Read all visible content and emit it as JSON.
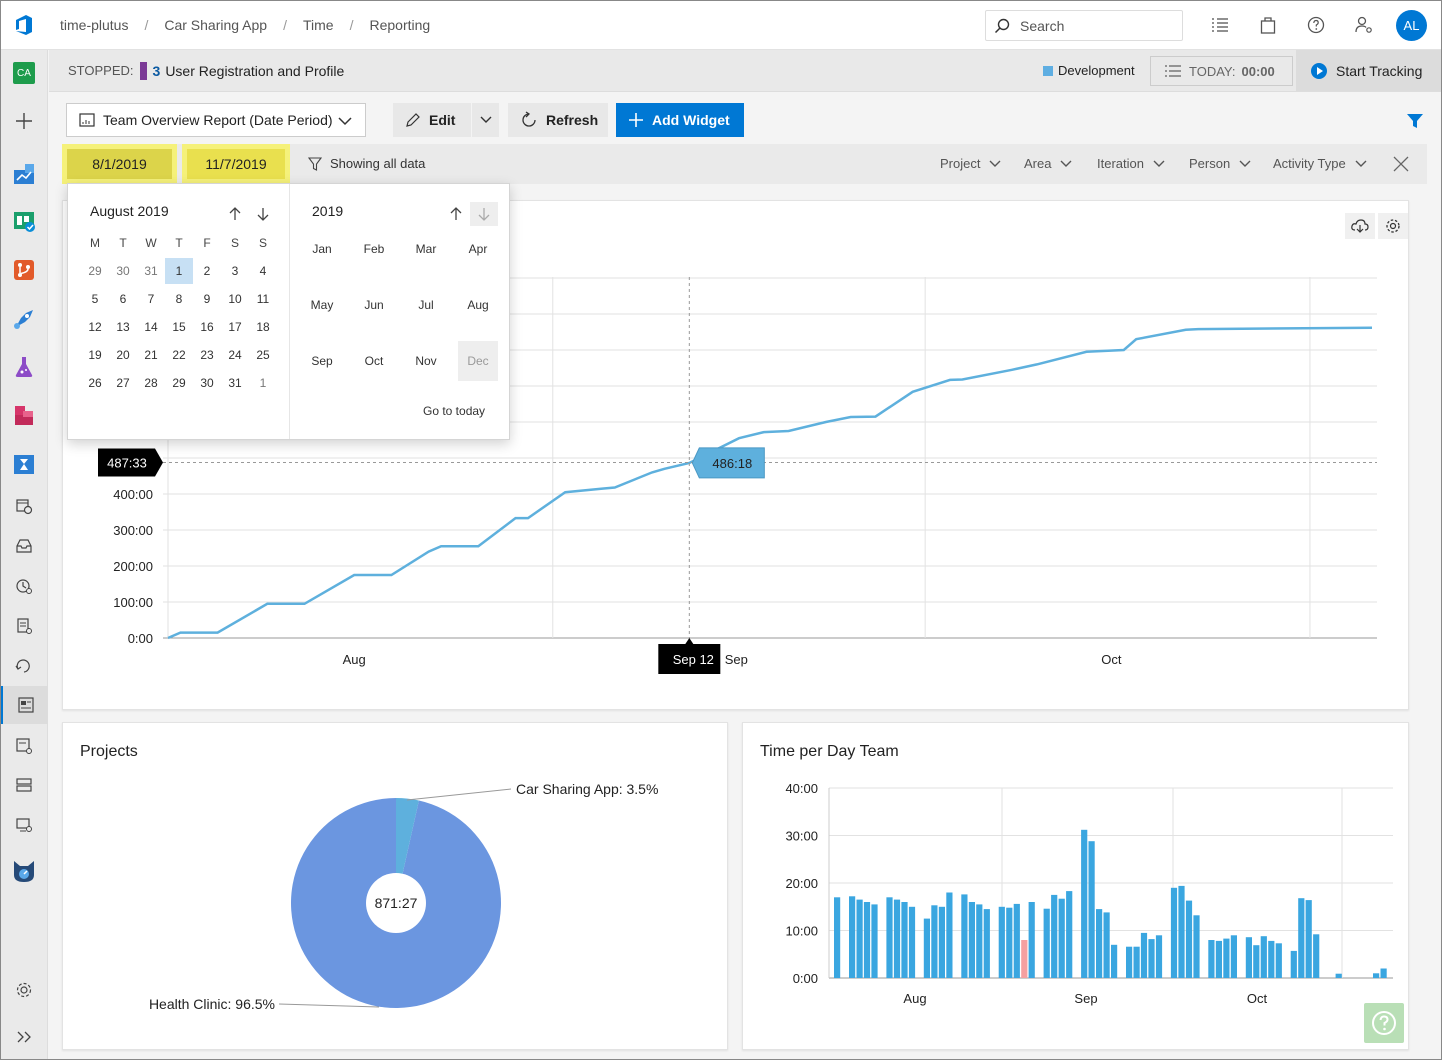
{
  "breadcrumb": [
    "time-plutus",
    "Car Sharing App",
    "Time",
    "Reporting"
  ],
  "search": {
    "placeholder": "Search"
  },
  "user": {
    "initials": "AL"
  },
  "nav": {
    "project_initials": "CA"
  },
  "status": {
    "label": "STOPPED:",
    "item_number": "3",
    "item_title": "User Registration and Profile",
    "activity": "Development",
    "today_label": "TODAY:",
    "today_value": "00:00",
    "start_label": "Start Tracking"
  },
  "toolbar": {
    "report": "Team Overview Report (Date Period)",
    "edit": "Edit",
    "refresh": "Refresh",
    "add_widget": "Add Widget"
  },
  "filters": {
    "start_date": "8/1/2019",
    "end_date": "11/7/2019",
    "showing": "Showing all data",
    "items": [
      "Project",
      "Area",
      "Iteration",
      "Person",
      "Activity Type"
    ]
  },
  "colors": {
    "accent": "#0078d4",
    "line": "#5eb0dd",
    "pie_main": "#6b96e0",
    "pie_small": "#5eb0dd",
    "bar": "#3aa6e0",
    "bar_highlight": "#f5a0a0"
  },
  "picker": {
    "month_title": "August 2019",
    "weekdays": [
      "M",
      "T",
      "W",
      "T",
      "F",
      "S",
      "S"
    ],
    "weeks": [
      [
        "29",
        "30",
        "31",
        "1",
        "2",
        "3",
        "4"
      ],
      [
        "5",
        "6",
        "7",
        "8",
        "9",
        "10",
        "11"
      ],
      [
        "12",
        "13",
        "14",
        "15",
        "16",
        "17",
        "18"
      ],
      [
        "19",
        "20",
        "21",
        "22",
        "23",
        "24",
        "25"
      ],
      [
        "26",
        "27",
        "28",
        "29",
        "30",
        "31",
        "1"
      ]
    ],
    "year_title": "2019",
    "months": [
      "Jan",
      "Feb",
      "Mar",
      "Apr",
      "May",
      "Jun",
      "Jul",
      "Aug",
      "Sep",
      "Oct",
      "Nov",
      "Dec"
    ],
    "go_today": "Go to today"
  },
  "chart_data": [
    {
      "type": "line",
      "title": "",
      "yticks": [
        "0:00",
        "100:00",
        "200:00",
        "300:00",
        "400:00"
      ],
      "xticks": [
        "Aug",
        "Sep",
        "Oct"
      ],
      "crosshair": {
        "y_label": "487:33",
        "x_label": "Sep 12",
        "point_label": "486:18"
      },
      "ylim_hours": [
        0,
        1000
      ],
      "x": [
        "2019-08-01",
        "2019-08-02",
        "2019-08-05",
        "2019-08-09",
        "2019-08-12",
        "2019-08-16",
        "2019-08-19",
        "2019-08-22",
        "2019-08-23",
        "2019-08-26",
        "2019-08-29",
        "2019-08-30",
        "2019-09-02",
        "2019-09-05",
        "2019-09-06",
        "2019-09-09",
        "2019-09-10",
        "2019-09-12",
        "2019-09-16",
        "2019-09-18",
        "2019-09-20",
        "2019-09-23",
        "2019-09-25",
        "2019-09-27",
        "2019-09-30",
        "2019-10-03",
        "2019-10-04",
        "2019-10-08",
        "2019-10-10",
        "2019-10-14",
        "2019-10-17",
        "2019-10-18",
        "2019-10-22",
        "2019-10-23",
        "2019-11-06"
      ],
      "y_hours": [
        0,
        15,
        15,
        95,
        95,
        175,
        175,
        240,
        255,
        255,
        333,
        333,
        405,
        415,
        418,
        460,
        470,
        486,
        555,
        572,
        575,
        600,
        614,
        615,
        684,
        717,
        718,
        745,
        760,
        795,
        800,
        830,
        856,
        858,
        862
      ]
    },
    {
      "type": "pie",
      "title": "Projects",
      "center_label": "871:27",
      "slices": [
        {
          "label": "Health Clinic: 96.5%",
          "value": 96.5
        },
        {
          "label": "Car Sharing App: 3.5%",
          "value": 3.5
        }
      ]
    },
    {
      "type": "bar",
      "title": "Time per Day Team",
      "yticks": [
        "0:00",
        "10:00",
        "20:00",
        "30:00",
        "40:00"
      ],
      "xticks": [
        "Aug",
        "Sep",
        "Oct"
      ],
      "ylim_hours": [
        0,
        40
      ],
      "values": [
        17,
        0,
        17.2,
        16.5,
        16,
        15.5,
        0,
        17,
        16.5,
        16,
        15,
        0,
        12.5,
        15.3,
        15,
        18,
        0,
        17.6,
        16,
        15.5,
        14.5,
        0,
        15,
        14.8,
        15.6,
        8,
        16,
        0,
        14.6,
        17.5,
        16.7,
        18.3,
        0,
        31.2,
        28.8,
        14.5,
        13.8,
        7,
        0,
        6.6,
        6.6,
        9.5,
        8.2,
        9,
        0,
        19,
        19.4,
        16.3,
        13.2,
        0,
        8,
        7.8,
        8.3,
        9,
        0,
        8.6,
        6.9,
        8.8,
        7.8,
        7.3,
        0,
        5.7,
        16.8,
        16.4,
        9.2,
        0,
        0,
        0.9,
        0,
        0,
        0,
        0,
        1,
        2
      ]
    }
  ]
}
